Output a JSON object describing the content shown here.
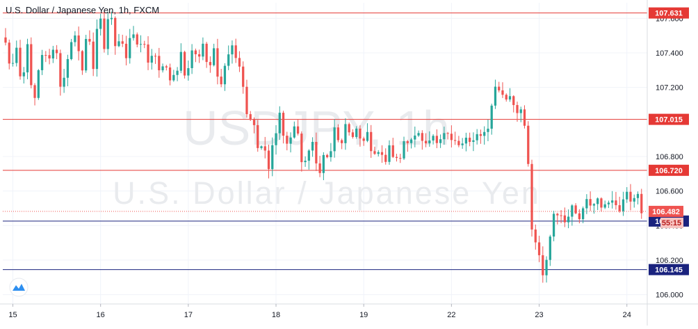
{
  "header": {
    "title": "U.S. Dollar / Japanese Yen, 1h, FXCM"
  },
  "watermark": {
    "symbol": "USDJPY, 1h",
    "name": "U.S. Dollar / Japanese Yen"
  },
  "colors": {
    "up_candle": "#26a69a",
    "down_candle": "#ef5350",
    "resistance_line": "#e53935",
    "support_line": "#1a237e",
    "current_price": "#ef5350",
    "timer_badge": "#f8c4c1",
    "logo": "#2e8ff0"
  },
  "chart_data": {
    "type": "candlestick",
    "title": "U.S. Dollar / Japanese Yen, 1h, FXCM",
    "ylim": [
      105.95,
      107.69
    ],
    "y_ticks": [
      106.0,
      106.2,
      106.4,
      106.6,
      106.8,
      107.2,
      107.4,
      107.6
    ],
    "y_tick_labels": [
      "106.000",
      "106.200",
      "106.400",
      "106.600",
      "106.800",
      "107.200",
      "107.400",
      "107.600"
    ],
    "x_ticks": [
      {
        "label": "15",
        "bar": 2
      },
      {
        "label": "16",
        "bar": 26
      },
      {
        "label": "17",
        "bar": 50
      },
      {
        "label": "18",
        "bar": 74
      },
      {
        "label": "19",
        "bar": 98
      },
      {
        "label": "22",
        "bar": 122
      },
      {
        "label": "23",
        "bar": 146
      },
      {
        "label": "24",
        "bar": 170
      }
    ],
    "grid": true,
    "horizontal_levels": [
      {
        "price": 107.631,
        "label": "107.631",
        "kind": "resistance"
      },
      {
        "price": 107.015,
        "label": "107.015",
        "kind": "resistance"
      },
      {
        "price": 106.72,
        "label": "106.720",
        "kind": "resistance"
      },
      {
        "price": 106.426,
        "label": "106.426",
        "kind": "support"
      },
      {
        "price": 106.145,
        "label": "106.145",
        "kind": "support"
      }
    ],
    "current_price": {
      "price": 106.482,
      "label": "106.482",
      "countdown": "55:15"
    },
    "series": [
      {
        "key": [
          107.45,
          107.3,
          107.4,
          107.18,
          107.47,
          107.05,
          107.28,
          107.42,
          107.35,
          107.48,
          107.22,
          107.3,
          107.44,
          107.5,
          107.3,
          107.55,
          107.32,
          107.66,
          107.4,
          107.7,
          107.42,
          107.52,
          107.38,
          107.55,
          107.42,
          107.47,
          107.36,
          107.4,
          107.28,
          107.36,
          107.22,
          107.28,
          107.4,
          107.24,
          107.42,
          107.36,
          107.46,
          107.3,
          107.4,
          107.2,
          107.34,
          107.45,
          107.4,
          107.3,
          107.05,
          107.02,
          106.85,
          106.86,
          106.72,
          106.92,
          107.05,
          106.86,
          106.9,
          107.03,
          106.74,
          106.82,
          106.86,
          106.7,
          106.8,
          106.78,
          106.95,
          106.85,
          106.97,
          106.88,
          106.98,
          106.86,
          106.92,
          106.78,
          106.85,
          106.75,
          106.88,
          106.76,
          106.8,
          106.9,
          106.88,
          106.95,
          106.92,
          106.87,
          106.9,
          106.84,
          106.93,
          106.9,
          106.92,
          106.86,
          106.9,
          106.86,
          106.93,
          106.9,
          106.95,
          107.2,
          107.2,
          107.12,
          107.16,
          107.05,
          107.08,
          106.95,
          106.4,
          106.25,
          106.1,
          106.25,
          106.45,
          106.48,
          106.42,
          106.5,
          106.48,
          106.46,
          106.56,
          106.53,
          106.58,
          106.5,
          106.52,
          106.54,
          106.5,
          106.58,
          106.55,
          106.6,
          106.48
        ]
      }
    ]
  }
}
